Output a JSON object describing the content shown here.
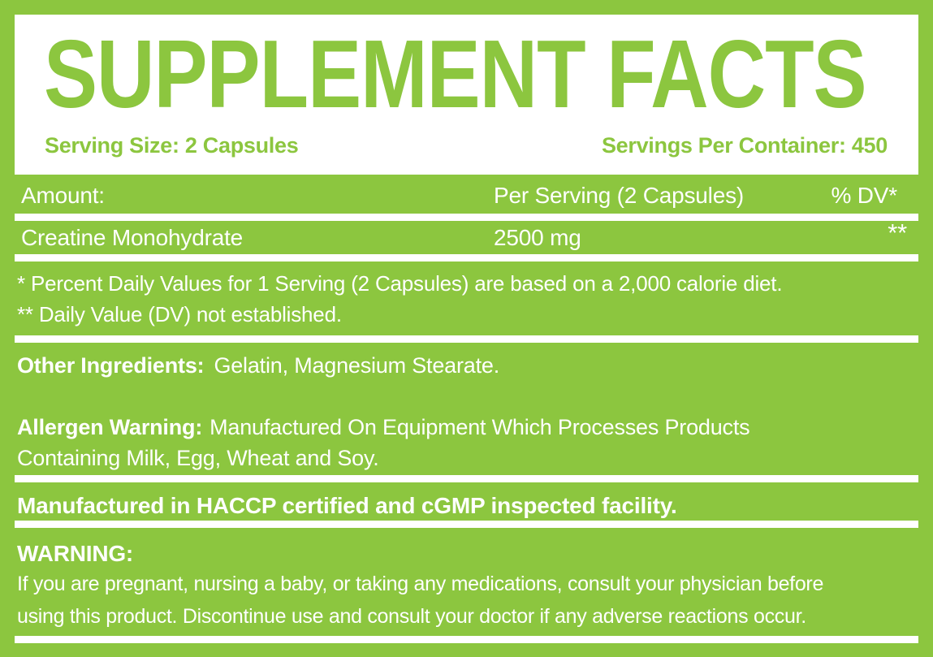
{
  "colors": {
    "accent_green": "#8CC63F",
    "panel_white": "#FFFFFF"
  },
  "header": {
    "title": "SUPPLEMENT FACTS",
    "serving_size": "Serving Size: 2 Capsules",
    "servings_per_container": "Servings Per Container: 450"
  },
  "table": {
    "header": {
      "amount": "Amount:",
      "per_serving": "Per Serving (2 Capsules)",
      "dv": "% DV*"
    },
    "rows": [
      {
        "name": "Creatine Monohydrate",
        "per_serving": "2500 mg",
        "dv": "**"
      }
    ]
  },
  "footnotes": {
    "percent_dv": "* Percent Daily Values for 1 Serving (2 Capsules) are based on a 2,000 calorie diet.",
    "dv_not_established": "** Daily Value (DV) not established."
  },
  "other_ingredients": {
    "label": "Other Ingredients:",
    "value": "Gelatin, Magnesium Stearate."
  },
  "allergen_warning": {
    "label": "Allergen Warning:",
    "line1": "Manufactured On Equipment Which Processes Products",
    "line2": "Containing Milk, Egg, Wheat and Soy."
  },
  "facility_statement": "Manufactured in HACCP certified and cGMP inspected facility.",
  "warning": {
    "label": "WARNING:",
    "line1": "If you are pregnant, nursing a baby, or taking any medications, consult your physician before",
    "line2": "using this product. Discontinue use and consult your doctor if any adverse reactions occur."
  }
}
